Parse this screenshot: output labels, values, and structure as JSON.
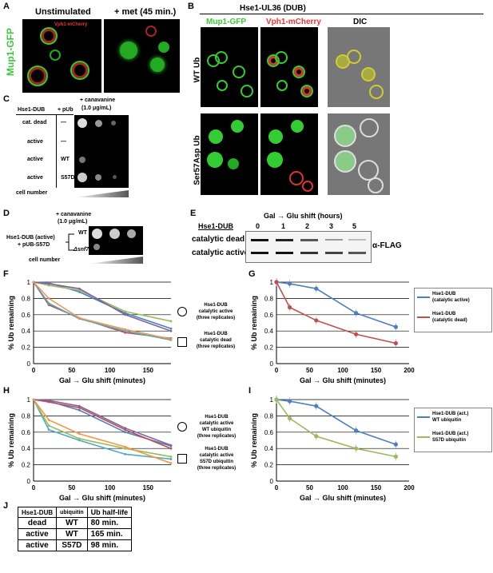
{
  "figure": {
    "panelA": {
      "label": "A",
      "title_unstim": "Unstimulated",
      "title_met": "+ met (45 min.)",
      "ylabel": "Mup1-GFP",
      "vph1": "Vph1-mCherry"
    },
    "panelB": {
      "label": "B",
      "header": "Hse1-UL36 (DUB)",
      "col1": "Mup1-GFP",
      "col2": "Vph1-mCherry",
      "col3": "DIC",
      "row1": "WT Ub",
      "row2": "Ser57Asp Ub"
    },
    "panelC": {
      "label": "C",
      "col_hse": "Hse1-DUB",
      "col_pub": "+ pUb",
      "can": "+ canavanine",
      "conc": "(1.0 μg/mL)",
      "rows": [
        {
          "dub": "cat. dead",
          "pub": "—"
        },
        {
          "dub": "active",
          "pub": "—"
        },
        {
          "dub": "active",
          "pub": "WT"
        },
        {
          "dub": "active",
          "pub": "S57D"
        }
      ],
      "cellnum": "cell number"
    },
    "panelD": {
      "label": "D",
      "left1": "Hse1-DUB (active)",
      "left2": "+ pUB-S57D",
      "wt": "WT",
      "snf": "Δsnf7",
      "can": "+ canavanine",
      "conc": "(1.0 μg/mL)",
      "cellnum": "cell number"
    },
    "panelE": {
      "label": "E",
      "header": "Gal → Glu shift (hours)",
      "hse": "Hse1-DUB",
      "times": [
        "0",
        "1",
        "2",
        "3",
        "5"
      ],
      "row1": "catalytic dead",
      "row2": "catalytic active",
      "ab": "α-FLAG"
    },
    "panelF": {
      "label": "F",
      "legend1": [
        "Hse1-DUB",
        "catalytic active",
        "(three replicates)"
      ],
      "legend2": [
        "Hse1-DUB",
        "catalytic dead",
        "(three replicates)"
      ]
    },
    "panelG": {
      "label": "G",
      "legend1": [
        "Hse1-DUB",
        "(catalytic active)"
      ],
      "legend2": [
        "Hse1-DUB",
        "(catalytic dead)"
      ]
    },
    "panelH": {
      "label": "H",
      "legend1": [
        "Hse1-DUB",
        "catalytic active",
        "WT ubiquitin",
        "(three replicates)"
      ],
      "legend2": [
        "Hse1-DUB",
        "catalytic active",
        "S57D ubiquitin",
        "(three replicates)"
      ]
    },
    "panelI": {
      "label": "I",
      "legend1": [
        "Hse1-DUB (act.)",
        "WT ubiquitin"
      ],
      "legend2": [
        "Hse1-DUB (act.)",
        "S57D ubiquitin"
      ]
    },
    "panelJ": {
      "label": "J",
      "headers": [
        "Hse1-DUB",
        "ubiquitin",
        "Ub half-life"
      ],
      "rows": [
        [
          "dead",
          "WT",
          "80 min."
        ],
        [
          "active",
          "WT",
          "165 min."
        ],
        [
          "active",
          "S57D",
          "98 min."
        ]
      ]
    },
    "colors": {
      "active": "#4a7fc1",
      "dead": "#c0504d",
      "s57d": "#9bbb59",
      "gfp": "#3fc63f",
      "mcherry": "#e33333"
    }
  },
  "chart_data": [
    {
      "panel": "F",
      "type": "line",
      "xlabel": "Gal → Glu shift (minutes)",
      "ylabel": "% Ub remaining",
      "xlim": [
        0,
        180
      ],
      "ylim": [
        0,
        1
      ],
      "xticks": [
        "0",
        "50",
        "100",
        "150"
      ],
      "yticks": [
        "0",
        "0.2",
        "0.4",
        "0.6",
        "0.8",
        "1"
      ],
      "x": [
        0,
        20,
        60,
        120,
        180
      ],
      "series": [
        {
          "group": "active",
          "color": "#4a7fc1",
          "values": [
            1,
            0.99,
            0.88,
            0.62,
            0.43
          ]
        },
        {
          "group": "active",
          "color": "#9bbb59",
          "values": [
            1,
            0.96,
            0.9,
            0.64,
            0.52
          ]
        },
        {
          "group": "active",
          "color": "#8064a2",
          "values": [
            1,
            0.98,
            0.92,
            0.6,
            0.4
          ]
        },
        {
          "group": "dead",
          "color": "#c0504d",
          "values": [
            1,
            0.72,
            0.56,
            0.38,
            0.31
          ]
        },
        {
          "group": "dead",
          "color": "#4bacc6",
          "values": [
            1,
            0.74,
            0.55,
            0.4,
            0.29
          ]
        },
        {
          "group": "dead",
          "color": "#f79646",
          "values": [
            1,
            0.8,
            0.56,
            0.42,
            0.3
          ]
        }
      ]
    },
    {
      "panel": "G",
      "type": "line",
      "xlabel": "Gal → Glu shift (minutes)",
      "ylabel": "% Ub remaining",
      "xlim": [
        0,
        200
      ],
      "ylim": [
        0,
        1
      ],
      "xticks": [
        "0",
        "50",
        "100",
        "150",
        "200"
      ],
      "yticks": [
        "0",
        "0.2",
        "0.4",
        "0.6",
        "0.8",
        "1"
      ],
      "x": [
        0,
        20,
        60,
        120,
        180
      ],
      "series": [
        {
          "name": "Hse1-DUB (catalytic active)",
          "color": "#4a7fc1",
          "values": [
            1,
            0.98,
            0.92,
            0.62,
            0.45
          ]
        },
        {
          "name": "Hse1-DUB (catalytic dead)",
          "color": "#c0504d",
          "values": [
            1,
            0.69,
            0.53,
            0.36,
            0.25
          ]
        }
      ]
    },
    {
      "panel": "H",
      "type": "line",
      "xlabel": "Gal → Glu shift (minutes)",
      "ylabel": "% Ub remaining",
      "xlim": [
        0,
        180
      ],
      "ylim": [
        0,
        1
      ],
      "xticks": [
        "0",
        "50",
        "100",
        "150"
      ],
      "yticks": [
        "0",
        "0.2",
        "0.4",
        "0.6",
        "0.8",
        "1"
      ],
      "x": [
        0,
        20,
        60,
        120,
        180
      ],
      "series": [
        {
          "group": "WT",
          "color": "#4a7fc1",
          "values": [
            1,
            0.98,
            0.87,
            0.6,
            0.43
          ]
        },
        {
          "group": "WT",
          "color": "#c0504d",
          "values": [
            1,
            0.97,
            0.9,
            0.63,
            0.4
          ]
        },
        {
          "group": "WT",
          "color": "#8064a2",
          "values": [
            1,
            0.99,
            0.92,
            0.65,
            0.44
          ]
        },
        {
          "group": "S57D",
          "color": "#4bacc6",
          "values": [
            1,
            0.63,
            0.5,
            0.33,
            0.27
          ]
        },
        {
          "group": "S57D",
          "color": "#9bbb59",
          "values": [
            1,
            0.68,
            0.52,
            0.4,
            0.3
          ]
        },
        {
          "group": "S57D",
          "color": "#f79646",
          "values": [
            1,
            0.75,
            0.58,
            0.42,
            0.22
          ]
        }
      ]
    },
    {
      "panel": "I",
      "type": "line",
      "xlabel": "Gal → Glu shift (minutes)",
      "ylabel": "% Ub remaining",
      "xlim": [
        0,
        200
      ],
      "ylim": [
        0,
        1
      ],
      "xticks": [
        "0",
        "50",
        "100",
        "150",
        "200"
      ],
      "yticks": [
        "0",
        "0.2",
        "0.4",
        "0.6",
        "0.8",
        "1"
      ],
      "x": [
        0,
        20,
        60,
        120,
        180
      ],
      "series": [
        {
          "name": "Hse1-DUB (act.) WT ubiquitin",
          "color": "#4a7fc1",
          "values": [
            1,
            0.98,
            0.92,
            0.62,
            0.45
          ]
        },
        {
          "name": "Hse1-DUB (act.) S57D ubiquitin",
          "color": "#9bbb59",
          "values": [
            1,
            0.77,
            0.55,
            0.4,
            0.3
          ]
        }
      ]
    }
  ]
}
